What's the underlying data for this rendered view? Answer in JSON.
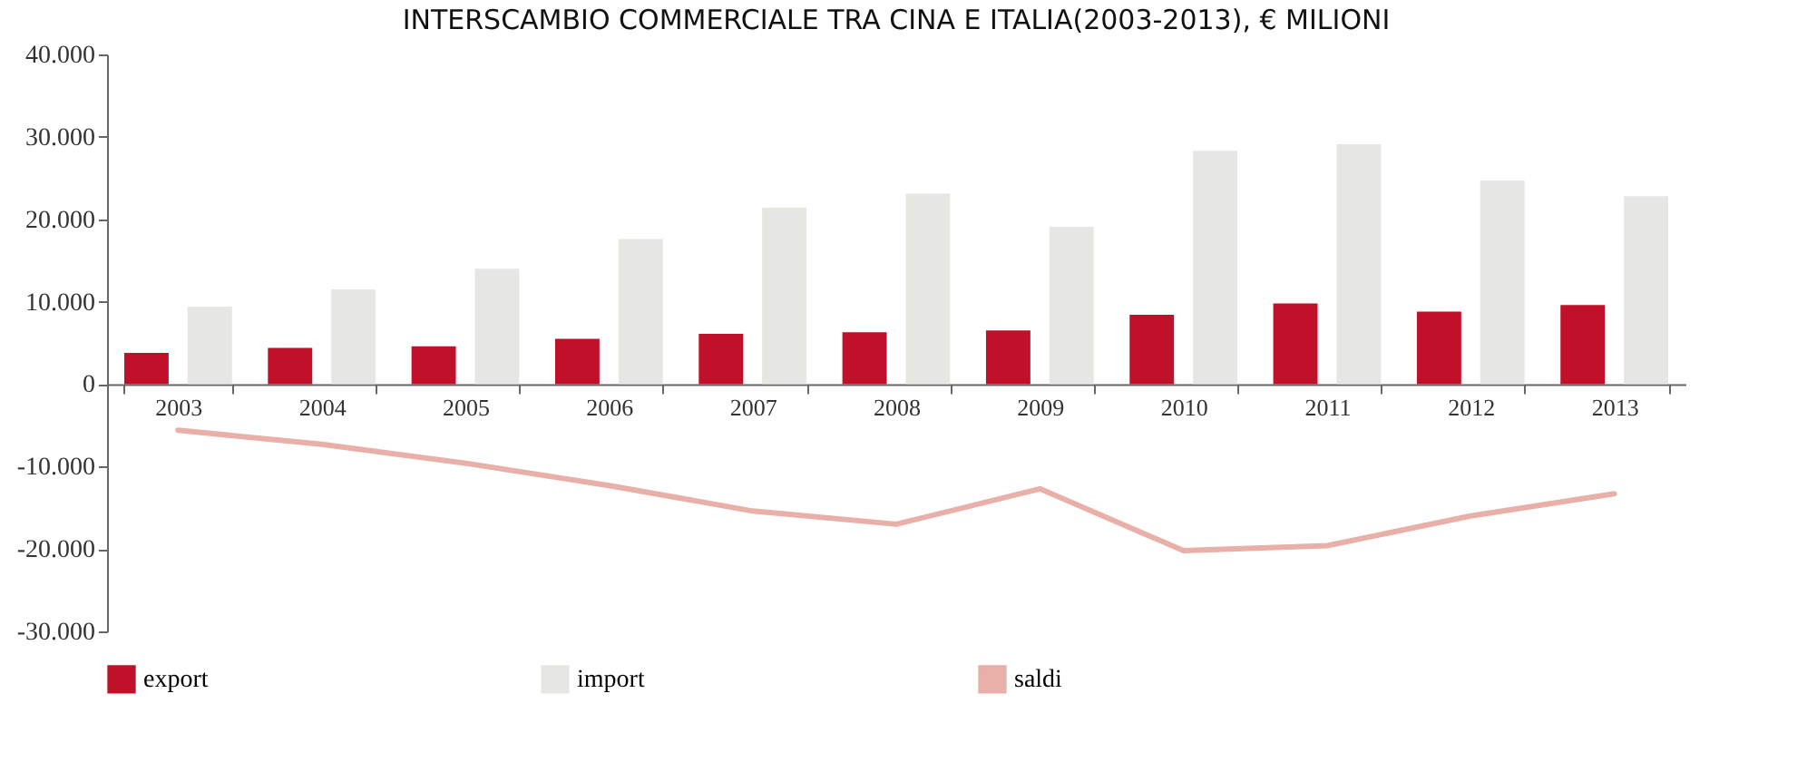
{
  "chart_data": {
    "type": "bar",
    "title": "INTERSCAMBIO COMMERCIALE TRA CINA E ITALIA(2003-2013), € MILIONI",
    "categories": [
      "2003",
      "2004",
      "2005",
      "2006",
      "2007",
      "2008",
      "2009",
      "2010",
      "2011",
      "2012",
      "2013"
    ],
    "series": [
      {
        "name": "export",
        "color": "#c0102a",
        "values": [
          3800,
          4400,
          4600,
          5500,
          6100,
          6300,
          6500,
          8400,
          9800,
          8800,
          9600
        ]
      },
      {
        "name": "import",
        "color": "#e6e6e2",
        "values": [
          9400,
          11500,
          14000,
          17600,
          21400,
          23100,
          19100,
          28300,
          29100,
          24700,
          22800
        ]
      },
      {
        "name": "saldi",
        "type": "line",
        "color": "#e8b0a8",
        "values": [
          -5600,
          -7300,
          -9600,
          -12300,
          -15400,
          -17000,
          -12700,
          -20200,
          -19600,
          -16000,
          -13300
        ]
      }
    ],
    "ylim": [
      -30000,
      40000
    ],
    "yticks": [
      {
        "value": -30000,
        "label": "-30.000"
      },
      {
        "value": -20000,
        "label": "-20.000"
      },
      {
        "value": -10000,
        "label": "-10.000"
      },
      {
        "value": 0,
        "label": "0"
      },
      {
        "value": 10000,
        "label": "10.000"
      },
      {
        "value": 20000,
        "label": "20.000"
      },
      {
        "value": 30000,
        "label": "30.000"
      },
      {
        "value": 40000,
        "label": "40.000"
      }
    ],
    "grid": false,
    "legend": "bottom"
  }
}
